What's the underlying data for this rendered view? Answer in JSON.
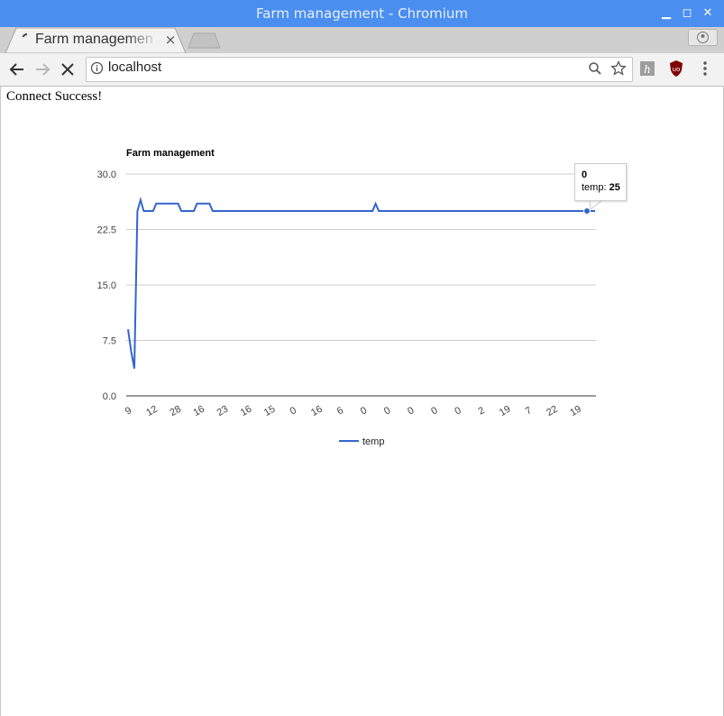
{
  "window": {
    "title": "Farm management - Chromium"
  },
  "tab": {
    "title": "Farm management",
    "close_label": "×"
  },
  "toolbar": {
    "url": "localhost"
  },
  "icons": {
    "back": "arrow-left-icon",
    "forward": "arrow-right-icon",
    "stop": "close-icon",
    "info": "info-icon",
    "zoom": "magnifier-icon",
    "bookmark": "star-icon",
    "ext1": "h-extension-icon",
    "ext2": "ublock-shield-icon",
    "menu": "kebab-menu-icon",
    "profile": "profile-icon"
  },
  "colors": {
    "titlebar": "#4a8ef0",
    "series": "#3366cc"
  },
  "page": {
    "status_text": "Connect Success!"
  },
  "chart_data": {
    "type": "line",
    "title": "Farm management",
    "ylim": [
      0,
      30
    ],
    "yticks": [
      "0.0",
      "7.5",
      "15.0",
      "22.5",
      "30.0"
    ],
    "grid": true,
    "legend_position": "bottom",
    "x_labels_shown": [
      "9",
      "12",
      "28",
      "16",
      "23",
      "16",
      "15",
      "0",
      "16",
      "6",
      "0",
      "0",
      "0",
      "0",
      "0",
      "2",
      "19",
      "7",
      "22",
      "19"
    ],
    "series": [
      {
        "name": "temp",
        "color": "#3366cc",
        "values": [
          9,
          6,
          3.7,
          25,
          26.5,
          25,
          25,
          25,
          25,
          26,
          26,
          26,
          26,
          26,
          26,
          26,
          26,
          25,
          25,
          25,
          25,
          25,
          26,
          26,
          26,
          26,
          26,
          25,
          25,
          25,
          25,
          25,
          25,
          25,
          25,
          25,
          25,
          25,
          25,
          25,
          25,
          25,
          25,
          25,
          25,
          25,
          25,
          25,
          25,
          25,
          25,
          25,
          25,
          25,
          25,
          25,
          25,
          25,
          25,
          25,
          25,
          25,
          25,
          25,
          25,
          25,
          25,
          25,
          25,
          25,
          25,
          25,
          25,
          25,
          25,
          25,
          25,
          25,
          25,
          26,
          25,
          25,
          25,
          25,
          25,
          25,
          25,
          25,
          25,
          25,
          25,
          25,
          25,
          25,
          25,
          25,
          25,
          25,
          25,
          25,
          25,
          25,
          25,
          25,
          25,
          25,
          25,
          25,
          25,
          25,
          25,
          25,
          25,
          25,
          25,
          25,
          25,
          25,
          25,
          25,
          25,
          25,
          25,
          25,
          25,
          25,
          25,
          25,
          25,
          25,
          25,
          25,
          25,
          25,
          25,
          25,
          25,
          25,
          25,
          25,
          25,
          25,
          25,
          25,
          25,
          25,
          25,
          25,
          25,
          25
        ]
      }
    ],
    "tooltip": {
      "header": "0",
      "series_label": "temp:",
      "value": "25"
    }
  }
}
